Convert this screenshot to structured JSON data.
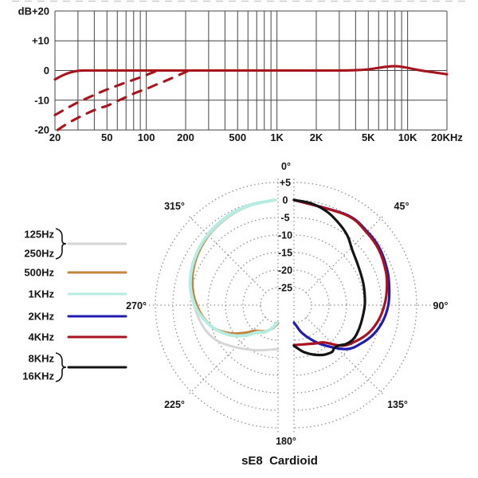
{
  "caption": "sE8  Cardioid",
  "legend": {
    "items": [
      {
        "labels": [
          "125Hz",
          "250Hz"
        ],
        "brace": true,
        "series": "125-250hz",
        "color": "#d6d6d6"
      },
      {
        "labels": [
          "500Hz"
        ],
        "brace": false,
        "series": "500hz",
        "color": "#c3853e"
      },
      {
        "labels": [
          "1KHz"
        ],
        "brace": false,
        "series": "1khz",
        "color": "#b6ece2"
      },
      {
        "labels": [
          "2KHz"
        ],
        "brace": false,
        "series": "2khz",
        "color": "#201cb0"
      },
      {
        "labels": [
          "4KHz"
        ],
        "brace": false,
        "series": "4khz",
        "color": "#a9121f"
      },
      {
        "labels": [
          "8KHz",
          "16KHz"
        ],
        "brace": true,
        "series": "8-16khz",
        "color": "#141414"
      }
    ]
  },
  "chart_data": [
    {
      "type": "line",
      "x_scale": "log",
      "xlim": [
        20,
        20000
      ],
      "ylim": [
        -20,
        20
      ],
      "y_unit": "dB",
      "y_tick_values": [
        20,
        10,
        0,
        -10,
        -20
      ],
      "y_tick_labels": [
        "+20",
        "+10",
        "0",
        "-10",
        "-20"
      ],
      "x_tick_values": [
        20,
        50,
        100,
        200,
        500,
        1000,
        2000,
        5000,
        10000,
        20000
      ],
      "x_tick_labels": [
        "20",
        "50",
        "100",
        "200",
        "500",
        "1K",
        "2K",
        "5K",
        "10K",
        "20KHz"
      ],
      "x_gridlines": [
        20,
        30,
        40,
        50,
        60,
        70,
        80,
        90,
        100,
        200,
        300,
        400,
        500,
        600,
        700,
        800,
        900,
        1000,
        2000,
        3000,
        4000,
        5000,
        6000,
        7000,
        8000,
        9000,
        10000,
        20000
      ],
      "grid_color": "#454545",
      "curve_color": "#a8141d",
      "series": [
        {
          "id": "on-axis",
          "name": "on-axis response",
          "style": "solid",
          "points": [
            [
              20,
              -3
            ],
            [
              23,
              -1.6
            ],
            [
              26,
              -0.7
            ],
            [
              30,
              -0.1
            ],
            [
              35,
              0
            ],
            [
              60,
              0
            ],
            [
              120,
              0
            ],
            [
              300,
              0
            ],
            [
              800,
              0
            ],
            [
              1500,
              0
            ],
            [
              3000,
              0
            ],
            [
              4000,
              0.1
            ],
            [
              5000,
              0.4
            ],
            [
              6000,
              0.9
            ],
            [
              7000,
              1.3
            ],
            [
              8000,
              1.45
            ],
            [
              9000,
              1.25
            ],
            [
              10000,
              0.9
            ],
            [
              12000,
              0.2
            ],
            [
              14000,
              -0.3
            ],
            [
              17000,
              -0.8
            ],
            [
              20000,
              -1.3
            ]
          ]
        },
        {
          "id": "low-cut-100hz",
          "name": "low-cut filter 1",
          "style": "dashed",
          "points": [
            [
              20,
              -15
            ],
            [
              24,
              -13
            ],
            [
              30,
              -10.7
            ],
            [
              37,
              -8.9
            ],
            [
              45,
              -7.2
            ],
            [
              55,
              -5.7
            ],
            [
              67,
              -4.3
            ],
            [
              80,
              -3.1
            ],
            [
              95,
              -1.9
            ],
            [
              108,
              -0.9
            ],
            [
              118,
              -0.3
            ],
            [
              124,
              0
            ]
          ]
        },
        {
          "id": "low-cut-200hz",
          "name": "low-cut filter 2",
          "style": "dashed",
          "points": [
            [
              21,
              -20
            ],
            [
              25,
              -17.8
            ],
            [
              30,
              -15.9
            ],
            [
              36,
              -14.2
            ],
            [
              43,
              -12.8
            ],
            [
              50,
              -11.9
            ],
            [
              60,
              -10.3
            ],
            [
              72,
              -8.7
            ],
            [
              86,
              -7.2
            ],
            [
              100,
              -6.2
            ],
            [
              120,
              -4.7
            ],
            [
              140,
              -3.5
            ],
            [
              160,
              -2.4
            ],
            [
              180,
              -1.4
            ],
            [
              200,
              -0.5
            ],
            [
              212,
              0
            ]
          ]
        }
      ]
    },
    {
      "type": "polar",
      "unit": "dB",
      "radial_tick_values": [
        5,
        0,
        -5,
        -10,
        -15,
        -20,
        -25
      ],
      "radial_tick_labels": [
        "+5",
        "0",
        "-5",
        "-10",
        "-15",
        "-20",
        "-25"
      ],
      "center_value": -30,
      "ring_step": 5,
      "angle_labels": [
        "0°",
        "45°",
        "90°",
        "135°",
        "180°",
        "225°",
        "270°",
        "315°"
      ],
      "grid_color": "#8e8e8e",
      "series": [
        {
          "id": "125-250hz",
          "name": "125Hz / 250Hz",
          "side": "left",
          "color": "#d6d6d6",
          "width": 3,
          "points": [
            [
              180,
              -17.5
            ],
            [
              193,
              -16.9
            ],
            [
              206,
              -15.7
            ],
            [
              219,
              -14
            ],
            [
              230,
              -12
            ],
            [
              240,
              -9.8
            ],
            [
              252,
              -8
            ],
            [
              265,
              -6.6
            ],
            [
              278,
              -5.2
            ],
            [
              292,
              -3.8
            ],
            [
              306,
              -2.7
            ],
            [
              320,
              -1.8
            ],
            [
              334,
              -1
            ],
            [
              347,
              -0.4
            ],
            [
              358,
              0
            ]
          ]
        },
        {
          "id": "500hz",
          "name": "500Hz",
          "side": "left",
          "color": "#c3853e",
          "width": 3,
          "points": [
            [
              180,
              -24.9
            ],
            [
              193,
              -23.2
            ],
            [
              207,
              -21.6
            ],
            [
              222,
              -20.2
            ],
            [
              230,
              -17.8
            ],
            [
              239,
              -14.4
            ],
            [
              249,
              -11
            ],
            [
              258,
              -9
            ],
            [
              266,
              -7.5
            ],
            [
              278,
              -5.6
            ],
            [
              292,
              -3.9
            ],
            [
              307,
              -2.5
            ],
            [
              322,
              -1.4
            ],
            [
              340,
              -0.5
            ],
            [
              358,
              0
            ]
          ]
        },
        {
          "id": "1khz",
          "name": "1KHz",
          "side": "left",
          "color": "#b6ece2",
          "width": 4,
          "points": [
            [
              183,
              -25
            ],
            [
              195,
              -23.2
            ],
            [
              207,
              -21.3
            ],
            [
              217,
              -20.3
            ],
            [
              228,
              -17
            ],
            [
              239,
              -13.6
            ],
            [
              250,
              -10.6
            ],
            [
              260,
              -8.3
            ],
            [
              270,
              -6.2
            ],
            [
              283,
              -4.3
            ],
            [
              297,
              -2.9
            ],
            [
              312,
              -1.8
            ],
            [
              327,
              -1
            ],
            [
              342,
              -0.4
            ],
            [
              358,
              0
            ]
          ]
        },
        {
          "id": "2khz",
          "name": "2KHz",
          "side": "right",
          "color": "#201cb0",
          "width": 3.2,
          "points": [
            [
              0,
              0
            ],
            [
              30,
              -0.2
            ],
            [
              45,
              -0.4
            ],
            [
              57,
              -0.7
            ],
            [
              70,
              -1.6
            ],
            [
              80,
              -2.4
            ],
            [
              90,
              -3.1
            ],
            [
              100,
              -4.2
            ],
            [
              110,
              -5.8
            ],
            [
              120,
              -8
            ],
            [
              130,
              -10.5
            ],
            [
              144,
              -16
            ],
            [
              155,
              -19.5
            ],
            [
              165,
              -22
            ],
            [
              173,
              -24
            ],
            [
              180,
              -25
            ]
          ]
        },
        {
          "id": "4khz",
          "name": "4KHz",
          "side": "right",
          "color": "#a9121f",
          "width": 3.2,
          "points": [
            [
              0,
              0
            ],
            [
              30,
              -0.3
            ],
            [
              45,
              -0.7
            ],
            [
              57,
              -1.1
            ],
            [
              70,
              -2.1
            ],
            [
              80,
              -3.1
            ],
            [
              90,
              -4.2
            ],
            [
              100,
              -5.5
            ],
            [
              110,
              -7.2
            ],
            [
              120,
              -9.5
            ],
            [
              130,
              -12
            ],
            [
              141,
              -16.3
            ],
            [
              150,
              -17.4
            ],
            [
              164,
              -18.4
            ],
            [
              180,
              -18.6
            ]
          ]
        },
        {
          "id": "8-16khz",
          "name": "8KHz / 16KHz",
          "side": "right",
          "color": "#141414",
          "width": 3.2,
          "points": [
            [
              0,
              0
            ],
            [
              10,
              -0.6
            ],
            [
              20,
              -1.8
            ],
            [
              30,
              -3.6
            ],
            [
              38,
              -5.1
            ],
            [
              46,
              -7
            ],
            [
              56,
              -8.3
            ],
            [
              66,
              -9
            ],
            [
              76,
              -9.4
            ],
            [
              90,
              -9.8
            ],
            [
              105,
              -10.2
            ],
            [
              115,
              -10.3
            ],
            [
              121,
              -10.6
            ],
            [
              127,
              -11.5
            ],
            [
              132,
              -12.8
            ],
            [
              137,
              -13.2
            ],
            [
              140,
              -12.8
            ],
            [
              144,
              -13
            ],
            [
              150,
              -13.6
            ],
            [
              159,
              -14.9
            ],
            [
              168,
              -16.3
            ],
            [
              175,
              -17.6
            ],
            [
              180,
              -18.4
            ]
          ]
        }
      ]
    }
  ]
}
